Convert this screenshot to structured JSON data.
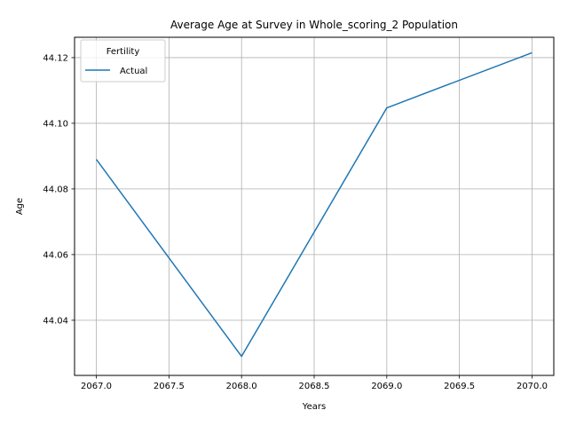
{
  "chart_data": {
    "type": "line",
    "title": "Average Age at Survey in Whole_scoring_2 Population",
    "xlabel": "Years",
    "ylabel": "Age",
    "xlim": [
      2066.85,
      2070.15
    ],
    "ylim": [
      44.0232,
      44.1262
    ],
    "x_ticks": [
      2067.0,
      2067.5,
      2068.0,
      2068.5,
      2069.0,
      2069.5,
      2070.0
    ],
    "x_tick_labels": [
      "2067.0",
      "2067.5",
      "2068.0",
      "2068.5",
      "2069.0",
      "2069.5",
      "2070.0"
    ],
    "y_ticks": [
      44.04,
      44.06,
      44.08,
      44.1,
      44.12
    ],
    "y_tick_labels": [
      "44.04",
      "44.06",
      "44.08",
      "44.10",
      "44.12"
    ],
    "grid": true,
    "legend": {
      "title": "Fertility",
      "placement": "top-left"
    },
    "series": [
      {
        "name": "Actual",
        "color": "#1f77b4",
        "x": [
          2067,
          2068,
          2069,
          2070
        ],
        "y": [
          44.089,
          44.029,
          44.1047,
          44.1215
        ]
      }
    ]
  }
}
